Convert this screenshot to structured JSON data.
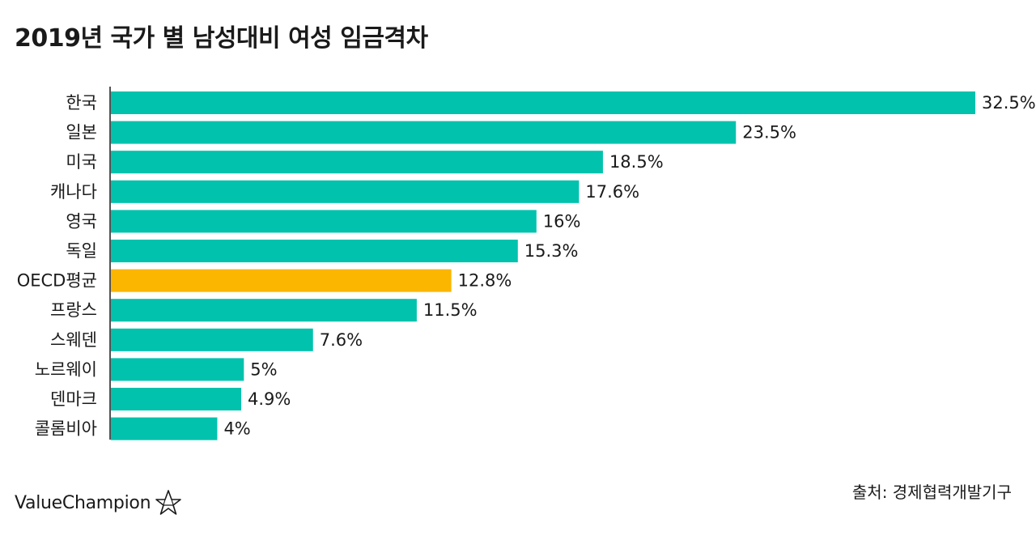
{
  "chart_data": {
    "type": "bar",
    "orientation": "horizontal",
    "title": "2019년 국가 별 남성대비 여성 임금격차",
    "categories": [
      "한국",
      "일본",
      "미국",
      "캐나다",
      "영국",
      "독일",
      "OECD평균",
      "프랑스",
      "스웨덴",
      "노르웨이",
      "덴마크",
      "콜롬비아"
    ],
    "values": [
      32.5,
      23.5,
      18.5,
      17.6,
      16,
      15.3,
      12.8,
      11.5,
      7.6,
      5,
      4.9,
      4
    ],
    "value_labels": [
      "32.5%",
      "23.5%",
      "18.5%",
      "17.6%",
      "16%",
      "15.3%",
      "12.8%",
      "11.5%",
      "7.6%",
      "5%",
      "4.9%",
      "4%"
    ],
    "highlight_category": "OECD평균",
    "colors": {
      "bar": "#00c2ad",
      "highlight": "#fbb600",
      "axis": "#1a1a1a"
    },
    "xlim": [
      0,
      32.5
    ],
    "xlabel": "",
    "ylabel": "",
    "grid": false
  },
  "source": "출처: 경제협력개발기구",
  "brand": {
    "name": "ValueChampion",
    "icon": "star-icon"
  }
}
